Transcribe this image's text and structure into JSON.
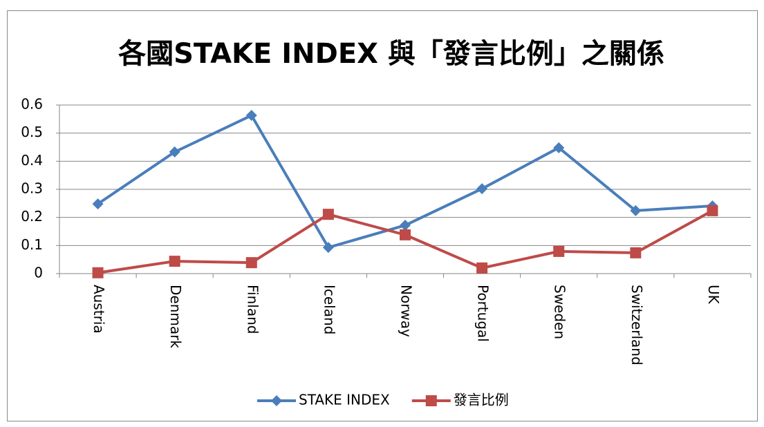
{
  "chart_data": {
    "type": "line",
    "title": "各國STAKE INDEX 與「發言比例」之關係",
    "categories": [
      "Austria",
      "Denmark",
      "Finland",
      "Iceland",
      "Norway",
      "Portugal",
      "Sweden",
      "Switzerland",
      "UK"
    ],
    "series": [
      {
        "name": "STAKE INDEX",
        "color": "#4a7ebb",
        "marker": "diamond",
        "values": [
          0.248,
          0.433,
          0.563,
          0.093,
          0.172,
          0.302,
          0.448,
          0.224,
          0.241
        ]
      },
      {
        "name": "發言比例",
        "color": "#be4b48",
        "marker": "square",
        "values": [
          0.003,
          0.044,
          0.039,
          0.211,
          0.138,
          0.02,
          0.079,
          0.074,
          0.224
        ]
      }
    ],
    "ylim": [
      0,
      0.6
    ],
    "yticks": [
      0,
      0.1,
      0.2,
      0.3,
      0.4,
      0.5,
      0.6
    ],
    "grid": true,
    "legend": "bottom"
  }
}
